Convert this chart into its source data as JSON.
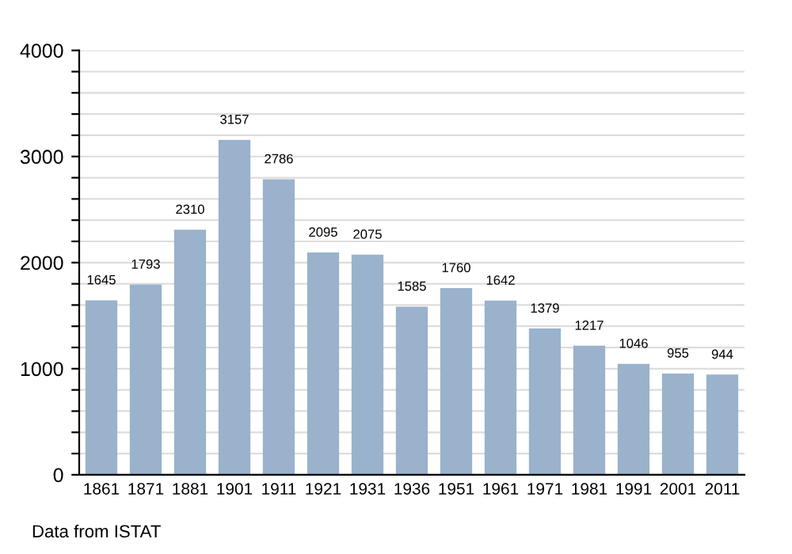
{
  "chart_data": {
    "type": "bar",
    "categories": [
      "1861",
      "1871",
      "1881",
      "1901",
      "1911",
      "1921",
      "1931",
      "1936",
      "1951",
      "1961",
      "1971",
      "1981",
      "1991",
      "2001",
      "2011"
    ],
    "values": [
      1645,
      1793,
      2310,
      3157,
      2786,
      2095,
      2075,
      1585,
      1760,
      1642,
      1379,
      1217,
      1046,
      955,
      944
    ],
    "color": "#9ab2cc",
    "ylim": [
      0,
      4000
    ],
    "yticks": [
      0,
      {
        "value": 200,
        "label": null
      },
      {
        "value": 400,
        "label": null
      },
      {
        "value": 600,
        "label": null
      },
      {
        "value": 800,
        "label": null
      },
      1000,
      {
        "value": 1200,
        "label": null
      },
      {
        "value": 1400,
        "label": null
      },
      {
        "value": 1600,
        "label": null
      },
      {
        "value": 1800,
        "label": null
      },
      2000,
      {
        "value": 2200,
        "label": null
      },
      {
        "value": 2400,
        "label": null
      },
      {
        "value": 2600,
        "label": null
      },
      {
        "value": 2800,
        "label": null
      },
      3000,
      {
        "value": 3200,
        "label": null
      },
      {
        "value": 3400,
        "label": null
      },
      {
        "value": 3600,
        "label": null
      },
      {
        "value": 3800,
        "label": null
      },
      4000
    ],
    "grid": "y",
    "data_labels": true,
    "annotations": [
      "Data from ISTAT"
    ]
  }
}
